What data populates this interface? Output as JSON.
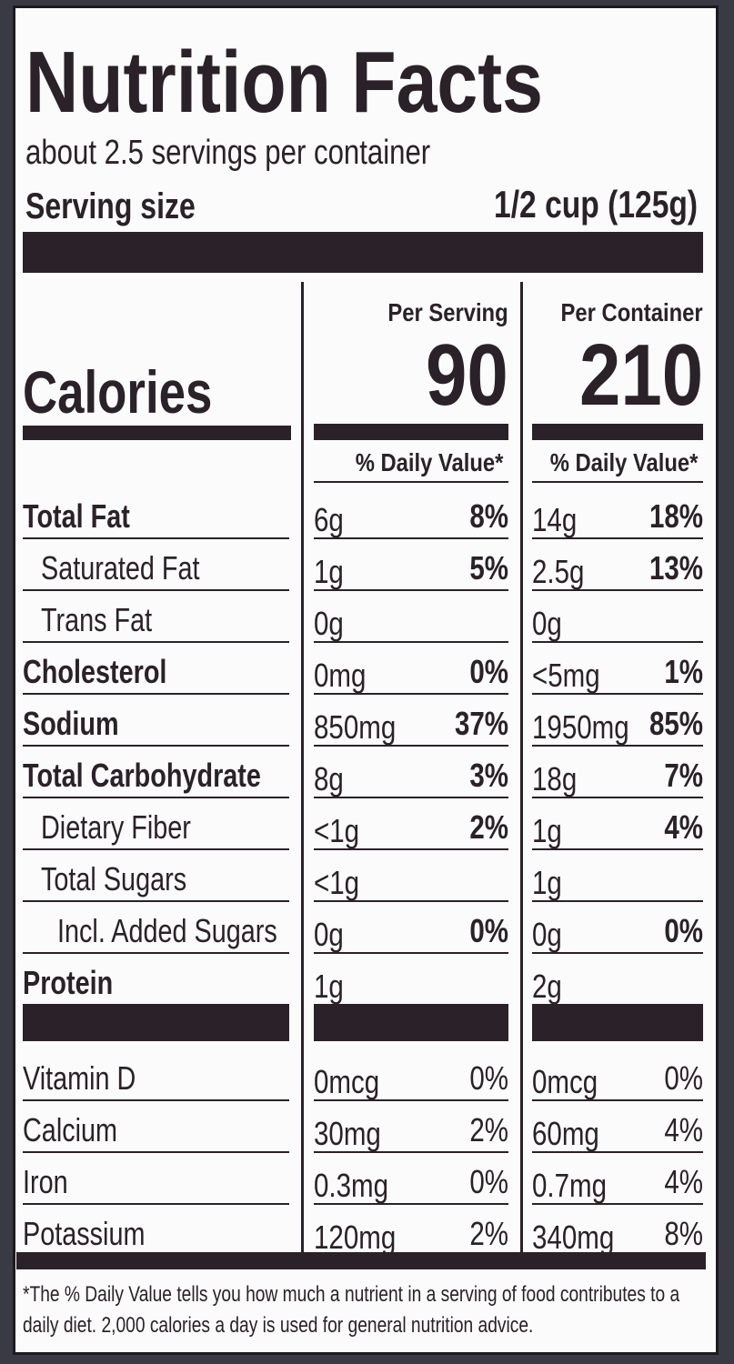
{
  "title": "Nutrition Facts",
  "servings": "about 2.5 servings per container",
  "serving_size_label": "Serving size",
  "serving_size": "1/2 cup (125g)",
  "calories_label": "Calories",
  "columns": [
    {
      "heading": "Per Serving",
      "calories": "90",
      "dv_heading": "% Daily Value*"
    },
    {
      "heading": "Per Container",
      "calories": "210",
      "dv_heading": "% Daily Value*"
    }
  ],
  "nutrients": [
    {
      "name": "Total Fat",
      "bold": true,
      "indent": 0,
      "serving": [
        "6g",
        "8%"
      ],
      "container": [
        "14g",
        "18%"
      ]
    },
    {
      "name": "Saturated Fat",
      "bold": false,
      "indent": 1,
      "serving": [
        "1g",
        "5%"
      ],
      "container": [
        "2.5g",
        "13%"
      ]
    },
    {
      "name": "Trans Fat",
      "bold": false,
      "indent": 1,
      "serving": [
        "0g"
      ],
      "container": [
        "0g"
      ]
    },
    {
      "name": "Cholesterol",
      "bold": true,
      "indent": 0,
      "serving": [
        "0mg",
        "0%"
      ],
      "container": [
        "<5mg",
        "1%"
      ]
    },
    {
      "name": "Sodium",
      "bold": true,
      "indent": 0,
      "serving": [
        "850mg",
        "37%"
      ],
      "container": [
        "1950mg",
        "85%"
      ]
    },
    {
      "name": "Total Carbohydrate",
      "bold": true,
      "indent": 0,
      "serving": [
        "8g",
        "3%"
      ],
      "container": [
        "18g",
        "7%"
      ]
    },
    {
      "name": "Dietary Fiber",
      "bold": false,
      "indent": 1,
      "serving": [
        "<1g",
        "2%"
      ],
      "container": [
        "1g",
        "4%"
      ]
    },
    {
      "name": "Total Sugars",
      "bold": false,
      "indent": 1,
      "serving": [
        "<1g"
      ],
      "container": [
        "1g"
      ]
    },
    {
      "name": "Incl. Added Sugars",
      "bold": false,
      "indent": 2,
      "serving": [
        "0g",
        "0%"
      ],
      "container": [
        "0g",
        "0%"
      ]
    },
    {
      "name": "Protein",
      "bold": true,
      "indent": 0,
      "serving": [
        "1g"
      ],
      "container": [
        "2g"
      ]
    }
  ],
  "vitamins": [
    {
      "name": "Vitamin D",
      "serving": [
        "0mcg",
        "0%"
      ],
      "container": [
        "0mcg",
        "0%"
      ]
    },
    {
      "name": "Calcium",
      "serving": [
        "30mg",
        "2%"
      ],
      "container": [
        "60mg",
        "4%"
      ]
    },
    {
      "name": "Iron",
      "serving": [
        "0.3mg",
        "0%"
      ],
      "container": [
        "0.7mg",
        "4%"
      ]
    },
    {
      "name": "Potassium",
      "serving": [
        "120mg",
        "2%"
      ],
      "container": [
        "340mg",
        "8%"
      ]
    }
  ],
  "footnote": "*The % Daily Value tells you how much a nutrient in a serving of food contributes to a daily diet. 2,000 calories a day is used for general nutrition advice."
}
